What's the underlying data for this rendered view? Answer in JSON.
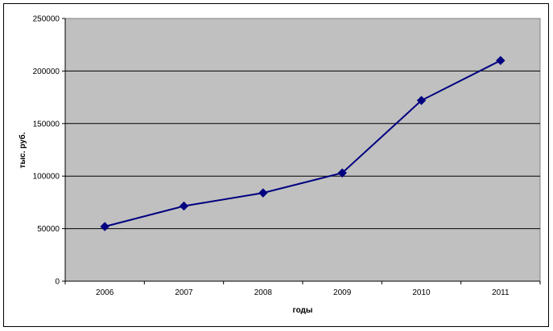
{
  "chart_data": {
    "type": "line",
    "title": "",
    "xlabel": "годы",
    "ylabel": "тыс. руб.",
    "categories": [
      "2006",
      "2007",
      "2008",
      "2009",
      "2010",
      "2011"
    ],
    "series": [
      {
        "values": [
          52000,
          71500,
          84000,
          103000,
          172000,
          210000
        ]
      }
    ],
    "ylim": [
      0,
      250000
    ],
    "yticks": [
      "0",
      "50000",
      "100000",
      "150000",
      "200000",
      "250000"
    ],
    "grid": "horizontal",
    "legend": "none",
    "colors": {
      "plot_background": "#c0c0c0",
      "line": "#000080",
      "marker": "#000080",
      "gridline": "#000000"
    },
    "marker": "diamond"
  }
}
